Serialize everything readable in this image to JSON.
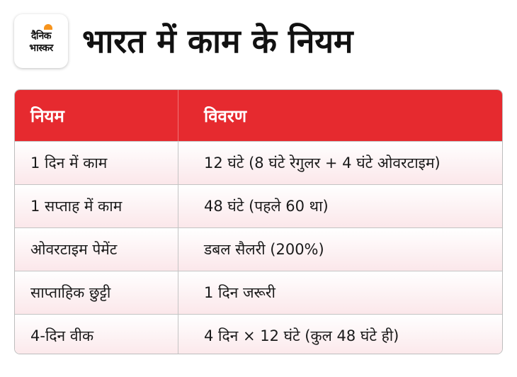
{
  "brand": {
    "line1": "दैनिक",
    "line2": "भास्कर"
  },
  "title": "भारत में काम के नियम",
  "table": {
    "headers": [
      "नियम",
      "विवरण"
    ],
    "rows": [
      [
        "1 दिन में काम",
        "12 घंटे (8 घंटे रेगुलर + 4 घंटे ओवरटाइम)"
      ],
      [
        "1 सप्ताह में काम",
        "48 घंटे (पहले 60 था)"
      ],
      [
        "ओवरटाइम पेमेंट",
        "डबल सैलरी (200%)"
      ],
      [
        "साप्ताहिक छुट्टी",
        "1 दिन जरूरी"
      ],
      [
        "4-दिन वीक",
        "4 दिन × 12 घंटे (कुल 48 घंटे ही)"
      ]
    ]
  },
  "colors": {
    "header": "#e62a2f",
    "row_tint": "#fbe7ea",
    "logo_accent": "#f7941d"
  }
}
